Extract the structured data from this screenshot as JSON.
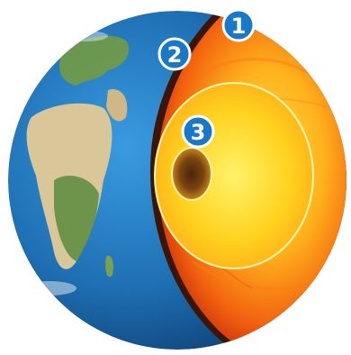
{
  "diagram": {
    "markers": [
      {
        "label": "1"
      },
      {
        "label": "2"
      },
      {
        "label": "3"
      }
    ]
  },
  "colors": {
    "ocean": "#1e6fb3",
    "ocean_dark": "#0f3f72",
    "land_desert": "#d9c79a",
    "land_green": "#5a8a3c",
    "crust_edge": "#3a1508",
    "mantle_outer": "#e23a0c",
    "mantle_inner": "#ff9a1a",
    "outer_core": "#ffd21f",
    "inner_core": "#6b3a12",
    "marker_fill": "#1a78c8"
  }
}
